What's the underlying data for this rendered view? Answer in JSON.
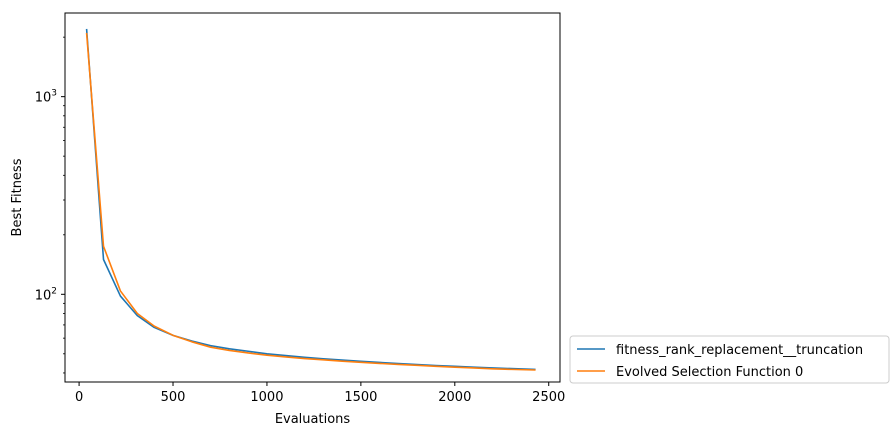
{
  "chart_data": {
    "type": "line",
    "title": "",
    "xlabel": "Evaluations",
    "ylabel": "Best Fitness",
    "xscale": "linear",
    "yscale": "log",
    "xlim": [
      -75,
      2560
    ],
    "ylim": [
      36,
      2650
    ],
    "xticks": [
      0,
      500,
      1000,
      1500,
      2000,
      2500
    ],
    "xtick_labels": [
      "0",
      "500",
      "1000",
      "1500",
      "2000",
      "2500"
    ],
    "yticks": [
      100,
      1000
    ],
    "ytick_labels": [
      "10^2",
      "10^3"
    ],
    "grid": false,
    "legend_position": "outside lower right",
    "series": [
      {
        "name": "fitness_rank_replacement__truncation",
        "color": "#1f77b4",
        "x": [
          40,
          130,
          220,
          310,
          400,
          500,
          600,
          700,
          800,
          900,
          1000,
          1100,
          1200,
          1300,
          1400,
          1500,
          1600,
          1700,
          1800,
          1900,
          2000,
          2100,
          2200,
          2300,
          2430
        ],
        "y": [
          2200,
          150,
          98,
          78,
          68,
          62,
          58,
          55,
          53,
          51.5,
          50,
          49,
          48,
          47.2,
          46.5,
          45.8,
          45.2,
          44.6,
          44.1,
          43.6,
          43.2,
          42.8,
          42.4,
          42.1,
          41.7
        ]
      },
      {
        "name": "Evolved Selection Function 0",
        "color": "#ff7f0e",
        "x": [
          40,
          130,
          220,
          310,
          400,
          500,
          600,
          700,
          800,
          900,
          1000,
          1100,
          1200,
          1300,
          1400,
          1500,
          1600,
          1700,
          1800,
          1900,
          2000,
          2100,
          2200,
          2300,
          2430
        ],
        "y": [
          2100,
          175,
          104,
          80,
          69,
          62,
          57.5,
          54,
          52,
          50.5,
          49.2,
          48.2,
          47.3,
          46.6,
          45.9,
          45.3,
          44.7,
          44.2,
          43.7,
          43.2,
          42.8,
          42.4,
          42,
          41.7,
          41.4
        ]
      }
    ]
  }
}
